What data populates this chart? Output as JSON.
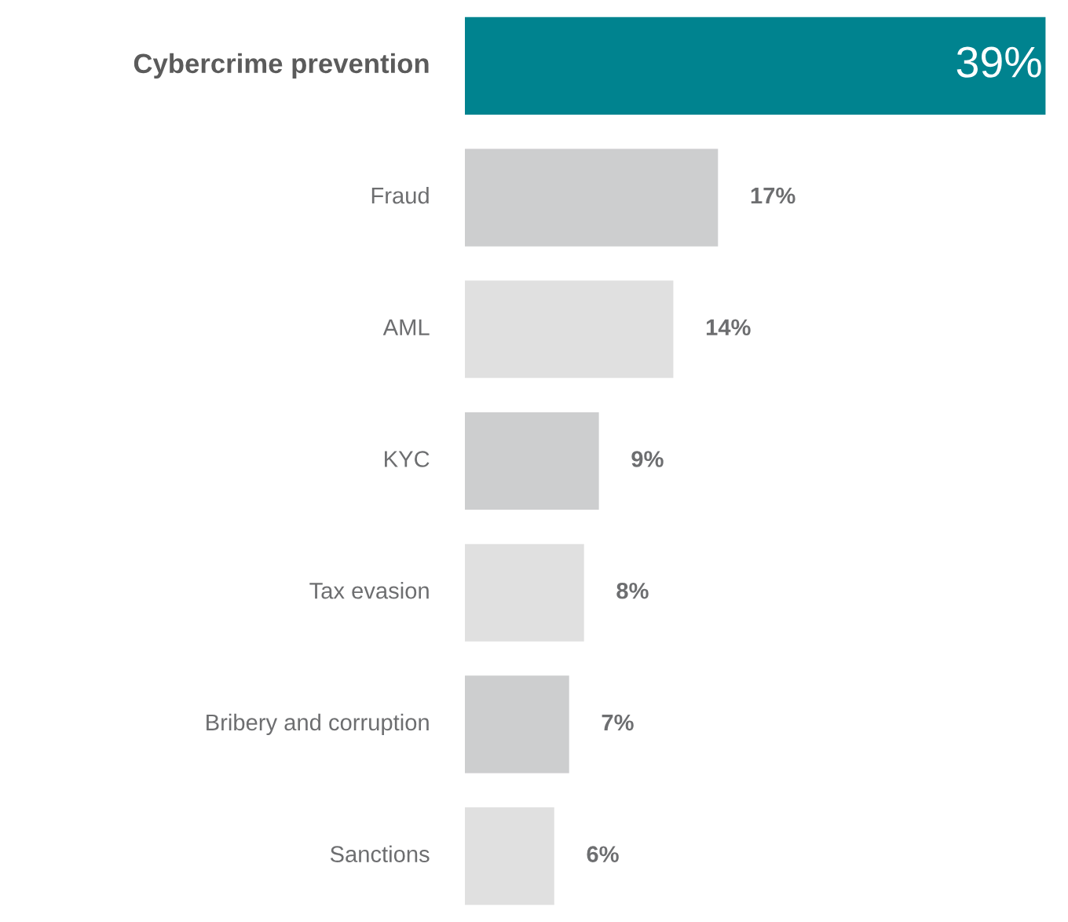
{
  "chart_data": {
    "type": "bar",
    "orientation": "horizontal",
    "categories": [
      "Cybercrime prevention",
      "Fraud",
      "AML",
      "KYC",
      "Tax evasion",
      "Bribery and corruption",
      "Sanctions"
    ],
    "values": [
      39,
      17,
      14,
      9,
      8,
      7,
      6
    ],
    "colors": [
      "#00838f",
      "#cdcecf",
      "#e0e0e0",
      "#cdcecf",
      "#e0e0e0",
      "#cdcecf",
      "#e0e0e0"
    ],
    "value_labels": [
      "39%",
      "17%",
      "14%",
      "9%",
      "8%",
      "7%",
      "6%"
    ]
  }
}
